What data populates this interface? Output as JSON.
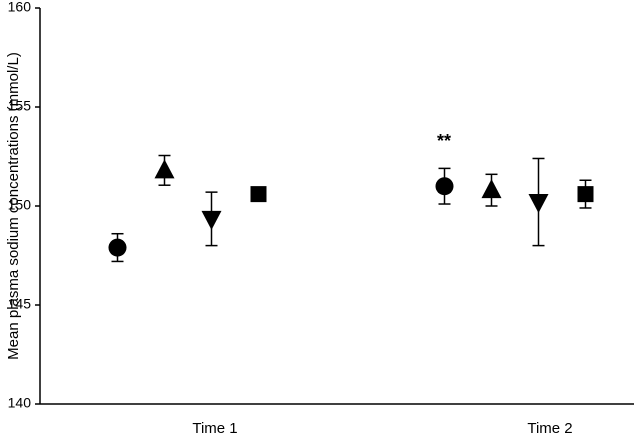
{
  "chart_data": {
    "type": "dot",
    "ylabel": "Mean plasma sodium concentrations (mmol/L)",
    "categories": [
      "Time 1",
      "Time 2"
    ],
    "series": [
      {
        "marker": "circle",
        "color": "#000000",
        "values": [
          147.9,
          151.0
        ],
        "errors": [
          0.7,
          0.9
        ]
      },
      {
        "marker": "triangle-up",
        "color": "#000000",
        "values": [
          151.8,
          150.8
        ],
        "errors": [
          0.75,
          0.8
        ]
      },
      {
        "marker": "triangle-down",
        "color": "#000000",
        "values": [
          149.35,
          150.2
        ],
        "errors": [
          1.35,
          2.2
        ]
      },
      {
        "marker": "square",
        "color": "#000000",
        "values": [
          150.6,
          150.6
        ],
        "errors": [
          0.2,
          0.7
        ]
      }
    ],
    "annotations": [
      "**"
    ],
    "ylim": [
      140,
      160
    ],
    "yticks": [
      140,
      145,
      150,
      155,
      160
    ],
    "grid": false
  }
}
